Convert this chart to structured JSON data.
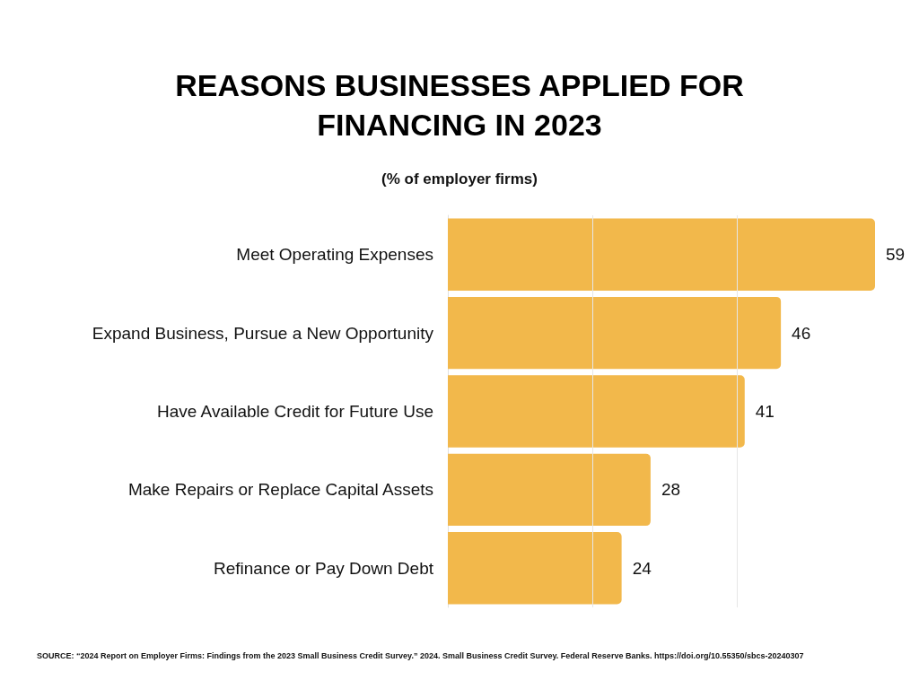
{
  "chart_data": {
    "type": "bar",
    "orientation": "horizontal",
    "title": "REASONS BUSINESSES APPLIED FOR\nFINANCING IN 2023",
    "subtitle": "(% of employer firms)",
    "categories": [
      "Meet Operating Expenses",
      "Expand Business, Pursue a New Opportunity",
      "Have Available Credit for Future Use",
      "Make Repairs or Replace Capital Assets",
      "Refinance or Pay Down Debt"
    ],
    "values": [
      59,
      46,
      41,
      28,
      24
    ],
    "color": "#f2b84b",
    "ref_lines": [
      {
        "axis": "x",
        "value": 20,
        "color": "#e6e6e6"
      },
      {
        "axis": "x",
        "value": 40,
        "color": "#e6e6e6"
      }
    ],
    "tick_labels": "y",
    "data_labels": true,
    "annotations": [
      "SOURCE: “2024 Report on Employer Firms: Findings from the 2023 Small Business Credit Survey.” 2024. Small Business Credit Survey. Federal Reserve Banks. https://doi.org/10.55350/sbcs-20240307"
    ]
  }
}
